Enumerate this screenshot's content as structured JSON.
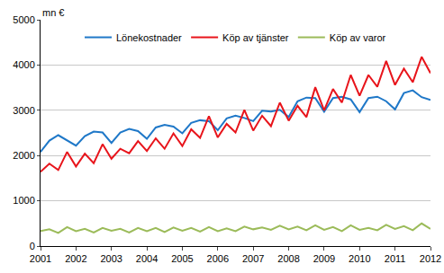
{
  "chart_data": {
    "type": "line",
    "y_label": "mn €",
    "categories": [
      "2001",
      null,
      null,
      null,
      "2002",
      null,
      null,
      null,
      "2003",
      null,
      null,
      null,
      "2004",
      null,
      null,
      null,
      "2005",
      null,
      null,
      null,
      "2006",
      null,
      null,
      null,
      "2007",
      null,
      null,
      null,
      "2008",
      null,
      null,
      null,
      "2009",
      null,
      null,
      null,
      "2010",
      null,
      null,
      null,
      "2011",
      null,
      null,
      null,
      "2012"
    ],
    "series": [
      {
        "name": "Lönekostnader",
        "color": "#1f78c8",
        "values": [
          2080,
          2330,
          2450,
          2330,
          2220,
          2430,
          2530,
          2510,
          2280,
          2510,
          2590,
          2540,
          2370,
          2620,
          2680,
          2640,
          2490,
          2720,
          2780,
          2760,
          2560,
          2820,
          2880,
          2830,
          2760,
          2990,
          2970,
          3010,
          2850,
          3200,
          3280,
          3270,
          2970,
          3270,
          3300,
          3240,
          2960,
          3270,
          3300,
          3200,
          3020,
          3380,
          3440,
          3290,
          3230
        ]
      },
      {
        "name": "Köp av tjänster",
        "color": "#e8141b",
        "values": [
          1640,
          1820,
          1680,
          2080,
          1760,
          2040,
          1830,
          2250,
          1930,
          2150,
          2050,
          2320,
          2100,
          2380,
          2150,
          2490,
          2210,
          2580,
          2390,
          2870,
          2400,
          2700,
          2510,
          3010,
          2550,
          2880,
          2650,
          3170,
          2770,
          3100,
          2850,
          3510,
          3000,
          3470,
          3170,
          3780,
          3320,
          3780,
          3520,
          4090,
          3560,
          3920,
          3620,
          4180,
          3820
        ]
      },
      {
        "name": "Köp av varor",
        "color": "#9bbb59",
        "values": [
          330,
          370,
          290,
          420,
          330,
          380,
          300,
          400,
          340,
          380,
          300,
          400,
          330,
          400,
          310,
          410,
          340,
          400,
          320,
          420,
          330,
          390,
          330,
          430,
          370,
          410,
          360,
          450,
          370,
          430,
          350,
          460,
          360,
          420,
          330,
          460,
          360,
          400,
          350,
          470,
          380,
          440,
          350,
          500,
          380
        ]
      }
    ],
    "ylim": [
      0,
      5000
    ],
    "yticks": [
      0,
      1000,
      2000,
      3000,
      4000,
      5000
    ],
    "grid": true,
    "legend": "top"
  }
}
